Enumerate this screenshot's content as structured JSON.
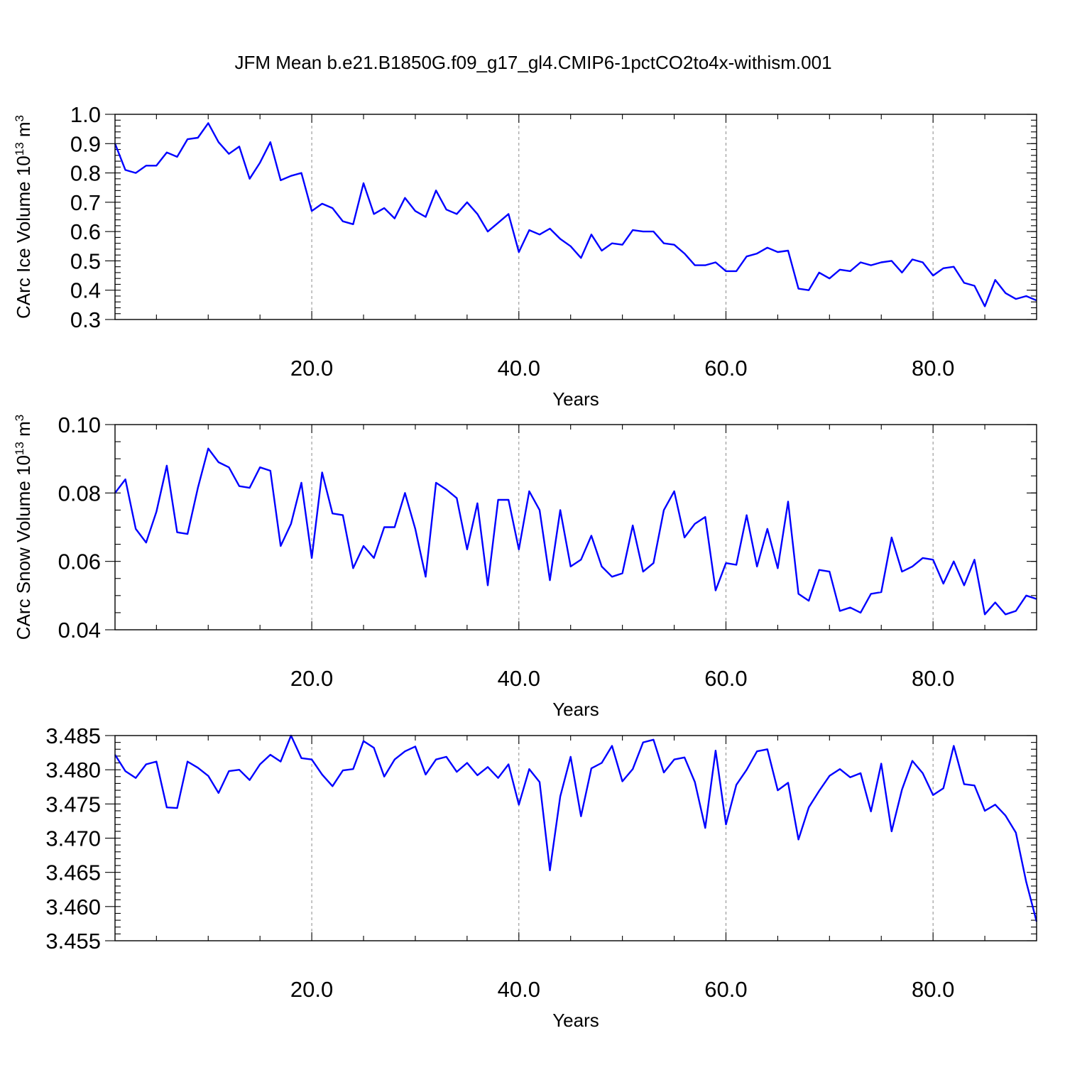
{
  "page": {
    "title": "JFM Mean b.e21.B1850G.f09_g17_gl4.CMIP6-1pctCO2to4x-withism.001"
  },
  "chart_data": [
    {
      "type": "line",
      "title": "JFM Mean b.e21.B1850G.f09_g17_gl4.CMIP6-1pctCO2to4x-withism.001",
      "xlabel": "Years",
      "ylabel": "CArc Ice Volume 10",
      "ylabel_exp": "13",
      "ylabel_unit": "m",
      "ylabel_unit_exp": "3",
      "xlim": [
        1,
        90
      ],
      "ylim": [
        0.3,
        1.0
      ],
      "x_ticks": [
        20,
        40,
        60,
        80
      ],
      "x_tick_labels": [
        "20.0",
        "40.0",
        "60.0",
        "80.0"
      ],
      "y_ticks": [
        0.3,
        0.4,
        0.5,
        0.6,
        0.7,
        0.8,
        0.9,
        1.0
      ],
      "y_tick_labels": [
        "0.3",
        "0.4",
        "0.5",
        "0.6",
        "0.7",
        "0.8",
        "0.9",
        "1.0"
      ],
      "y_minor_step": 0.02,
      "grid": "x-dashed",
      "line_color": "#0000ff",
      "x_start": 1,
      "values": [
        0.9,
        0.81,
        0.8,
        0.825,
        0.825,
        0.87,
        0.855,
        0.915,
        0.92,
        0.97,
        0.905,
        0.865,
        0.89,
        0.78,
        0.835,
        0.905,
        0.775,
        0.79,
        0.8,
        0.67,
        0.695,
        0.68,
        0.635,
        0.625,
        0.765,
        0.66,
        0.68,
        0.645,
        0.715,
        0.67,
        0.65,
        0.74,
        0.675,
        0.66,
        0.7,
        0.66,
        0.6,
        0.63,
        0.66,
        0.53,
        0.605,
        0.59,
        0.61,
        0.575,
        0.55,
        0.51,
        0.59,
        0.535,
        0.56,
        0.555,
        0.605,
        0.6,
        0.6,
        0.56,
        0.555,
        0.525,
        0.485,
        0.485,
        0.495,
        0.465,
        0.465,
        0.515,
        0.525,
        0.545,
        0.53,
        0.535,
        0.405,
        0.4,
        0.46,
        0.44,
        0.47,
        0.465,
        0.495,
        0.485,
        0.495,
        0.5,
        0.46,
        0.505,
        0.495,
        0.45,
        0.475,
        0.48,
        0.425,
        0.415,
        0.345,
        0.435,
        0.39,
        0.37,
        0.38,
        0.365
      ]
    },
    {
      "type": "line",
      "xlabel": "Years",
      "ylabel": "CArc Snow Volume 10",
      "ylabel_exp": "13",
      "ylabel_unit": "m",
      "ylabel_unit_exp": "3",
      "xlim": [
        1,
        90
      ],
      "ylim": [
        0.04,
        0.1
      ],
      "x_ticks": [
        20,
        40,
        60,
        80
      ],
      "x_tick_labels": [
        "20.0",
        "40.0",
        "60.0",
        "80.0"
      ],
      "y_ticks": [
        0.04,
        0.06,
        0.08,
        0.1
      ],
      "y_tick_labels": [
        "0.04",
        "0.06",
        "0.08",
        "0.10"
      ],
      "y_minor_step": 0.005,
      "grid": "x-dashed",
      "line_color": "#0000ff",
      "x_start": 1,
      "values": [
        0.08,
        0.084,
        0.0695,
        0.0655,
        0.0745,
        0.088,
        0.0685,
        0.068,
        0.0815,
        0.093,
        0.089,
        0.0875,
        0.082,
        0.0815,
        0.0875,
        0.0865,
        0.0645,
        0.071,
        0.083,
        0.061,
        0.086,
        0.074,
        0.0735,
        0.058,
        0.0645,
        0.061,
        0.07,
        0.07,
        0.08,
        0.0695,
        0.0555,
        0.083,
        0.081,
        0.0785,
        0.0635,
        0.077,
        0.053,
        0.078,
        0.078,
        0.0635,
        0.0805,
        0.075,
        0.0545,
        0.075,
        0.0585,
        0.0605,
        0.0675,
        0.0585,
        0.0555,
        0.0565,
        0.0705,
        0.057,
        0.0595,
        0.075,
        0.0805,
        0.067,
        0.071,
        0.073,
        0.0515,
        0.0595,
        0.059,
        0.0735,
        0.0585,
        0.0695,
        0.058,
        0.0775,
        0.0505,
        0.0485,
        0.0575,
        0.057,
        0.0455,
        0.0465,
        0.045,
        0.0505,
        0.051,
        0.067,
        0.057,
        0.0585,
        0.061,
        0.0605,
        0.0535,
        0.06,
        0.053,
        0.0605,
        0.0445,
        0.048,
        0.0445,
        0.0455,
        0.05,
        0.049
      ]
    },
    {
      "type": "line",
      "xlabel": "Years",
      "ylabel": "",
      "xlim": [
        1,
        90
      ],
      "ylim": [
        3.455,
        3.485
      ],
      "x_ticks": [
        20,
        40,
        60,
        80
      ],
      "x_tick_labels": [
        "20.0",
        "40.0",
        "60.0",
        "80.0"
      ],
      "y_ticks": [
        3.455,
        3.46,
        3.465,
        3.47,
        3.475,
        3.48,
        3.485
      ],
      "y_tick_labels": [
        "3.455",
        "3.460",
        "3.465",
        "3.470",
        "3.475",
        "3.480",
        "3.485"
      ],
      "y_minor_step": 0.001,
      "grid": "x-dashed",
      "line_color": "#0000ff",
      "x_start": 1,
      "values": [
        3.4822,
        3.4798,
        3.4788,
        3.4808,
        3.4812,
        3.4745,
        3.4744,
        3.4812,
        3.4803,
        3.4791,
        3.4766,
        3.4798,
        3.48,
        3.4785,
        3.4808,
        3.4822,
        3.4812,
        3.485,
        3.4817,
        3.4815,
        3.4793,
        3.4776,
        3.4799,
        3.4801,
        3.4842,
        3.4832,
        3.479,
        3.4815,
        3.4827,
        3.4834,
        3.4793,
        3.4815,
        3.4819,
        3.4797,
        3.481,
        3.4792,
        3.4804,
        3.4788,
        3.4808,
        3.4749,
        3.4801,
        3.4782,
        3.4653,
        3.4761,
        3.4819,
        3.4732,
        3.4802,
        3.481,
        3.4835,
        3.4783,
        3.4801,
        3.484,
        3.4844,
        3.4796,
        3.4815,
        3.4818,
        3.4782,
        3.4715,
        3.4828,
        3.472,
        3.4778,
        3.48,
        3.4827,
        3.483,
        3.477,
        3.4781,
        3.4698,
        3.4745,
        3.4769,
        3.4791,
        3.4801,
        3.4789,
        3.4795,
        3.4739,
        3.4809,
        3.471,
        3.4771,
        3.4813,
        3.4795,
        3.4763,
        3.4773,
        3.4835,
        3.4779,
        3.4777,
        3.474,
        3.4749,
        3.4733,
        3.4708,
        3.4636,
        3.4578
      ]
    }
  ]
}
